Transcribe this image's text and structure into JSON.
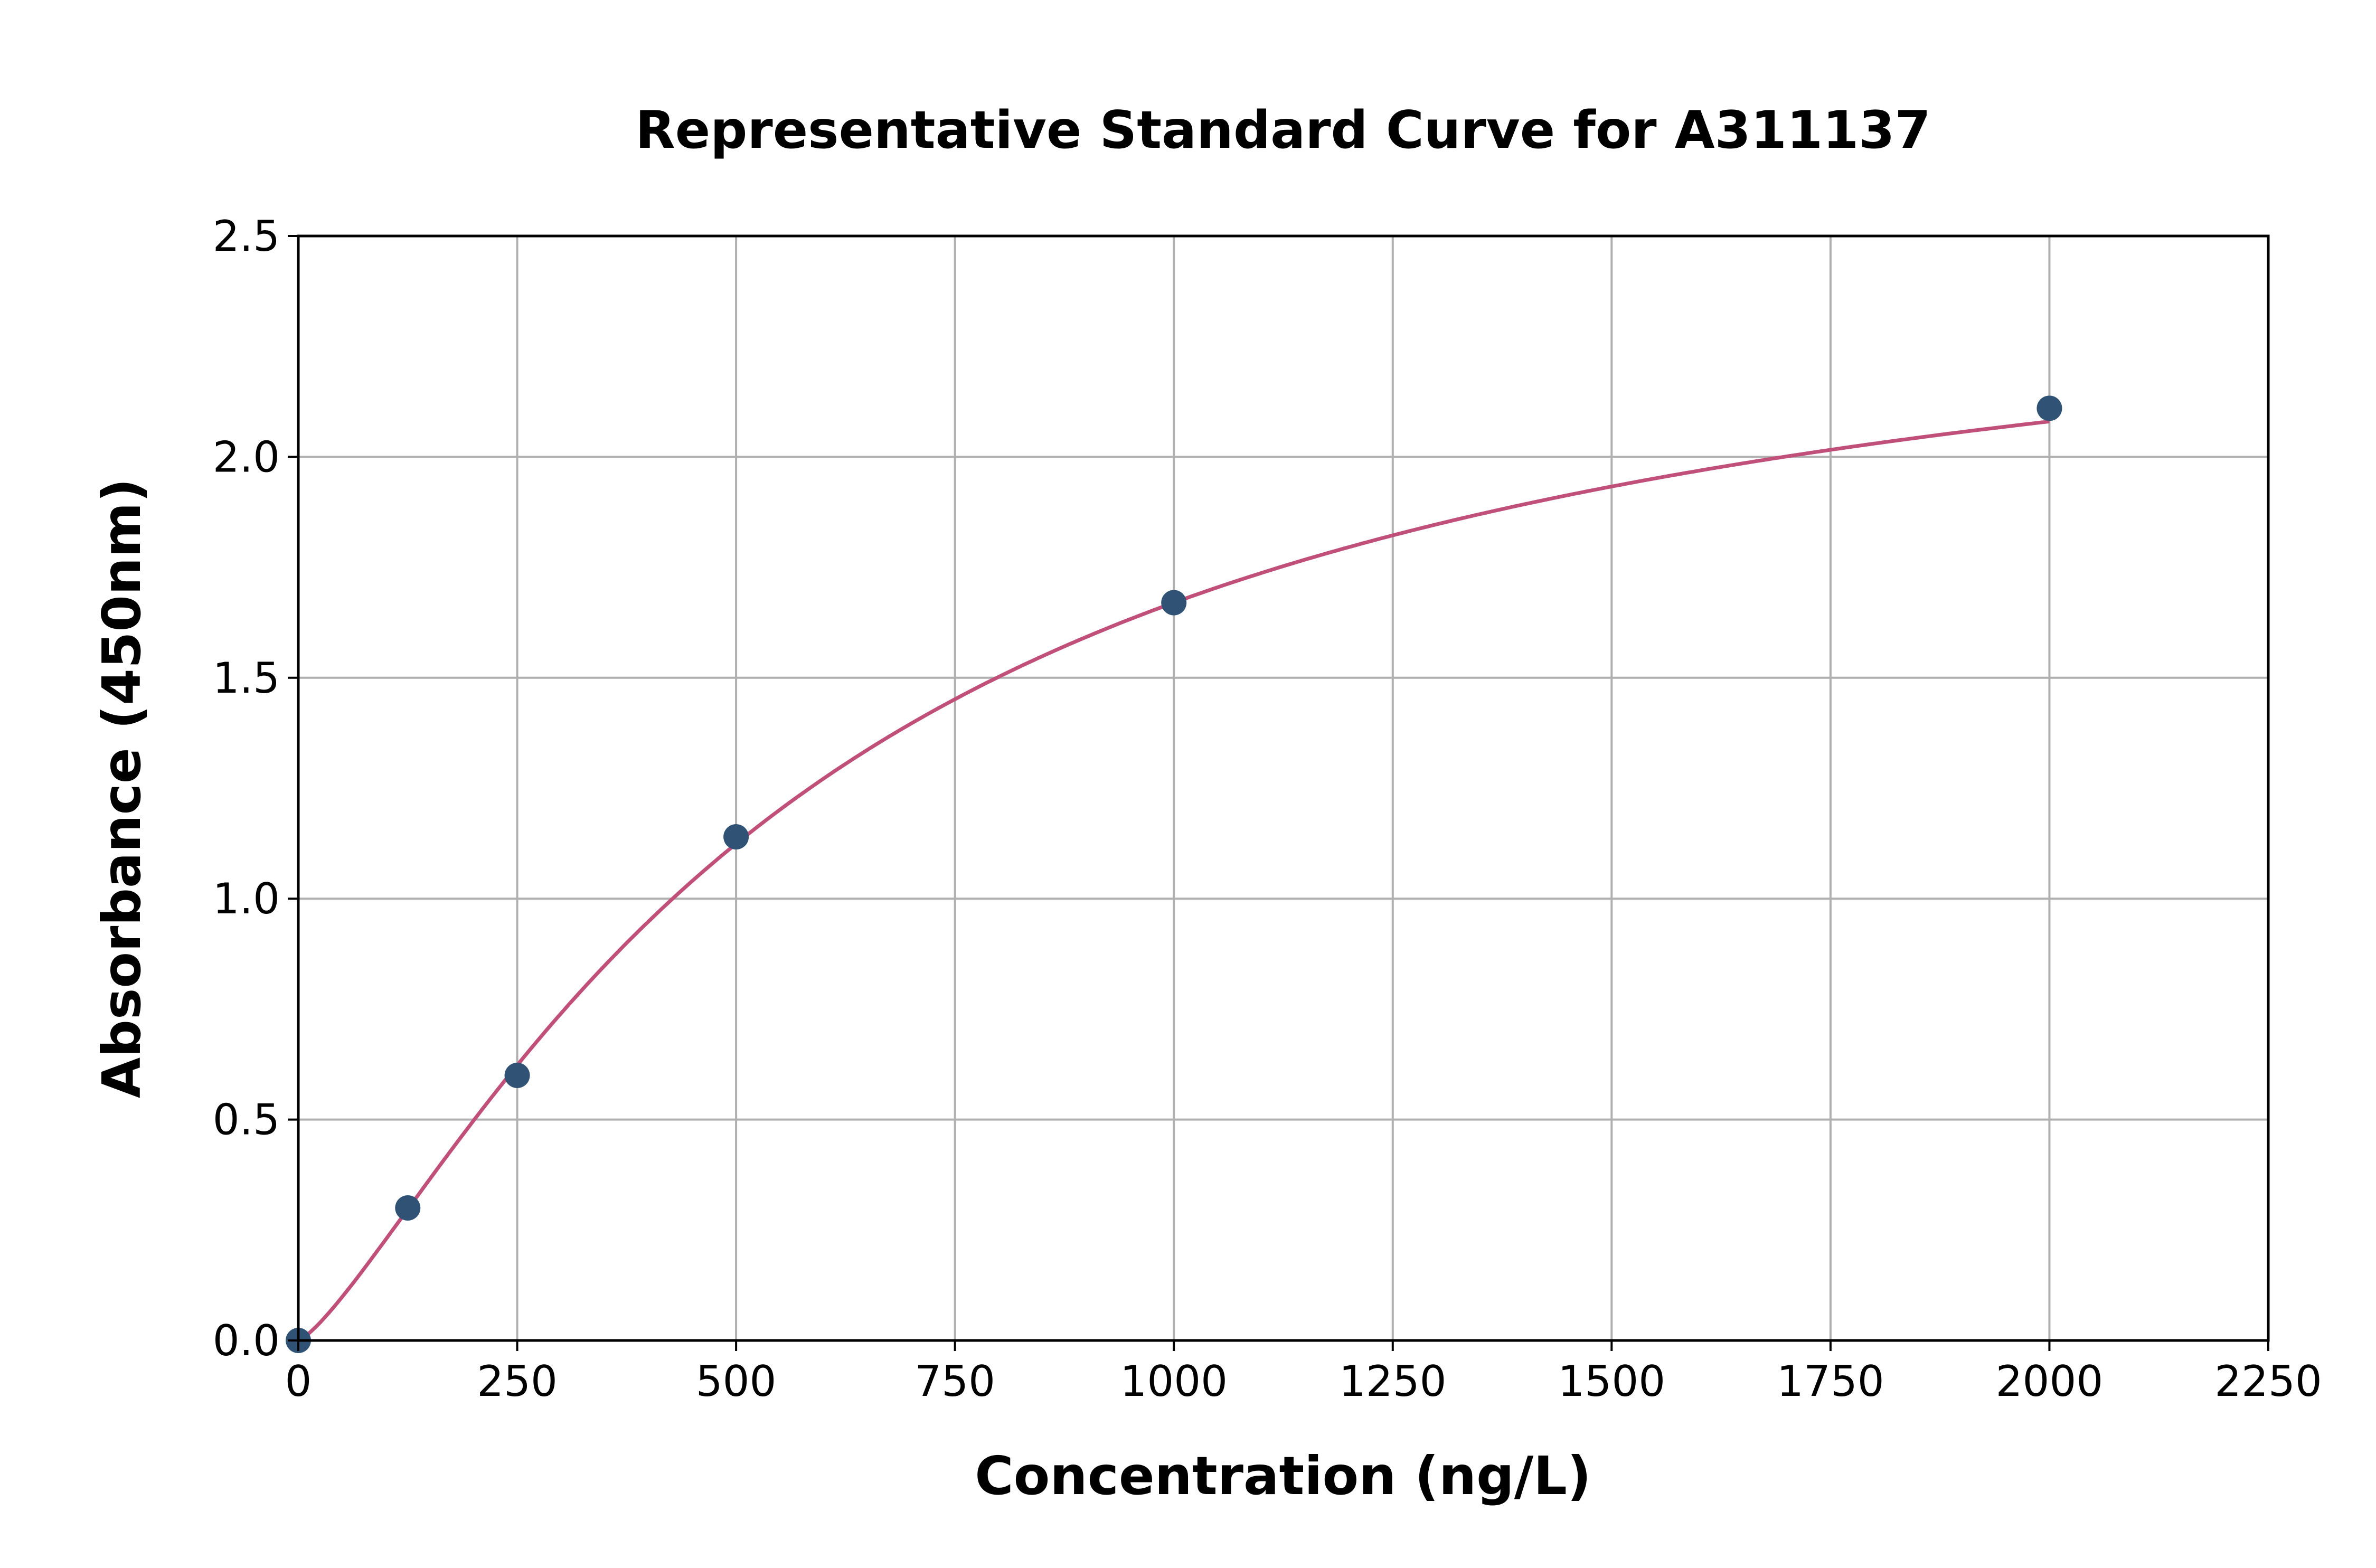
{
  "chart_data": {
    "type": "scatter",
    "title": "Representative Standard Curve for A311137",
    "xlabel": "Concentration (ng/L)",
    "ylabel": "Absorbance (450nm)",
    "xlim": [
      0,
      2250
    ],
    "ylim": [
      0,
      2.5
    ],
    "xticks": [
      "0",
      "250",
      "500",
      "750",
      "1000",
      "1250",
      "1500",
      "1750",
      "2000",
      "2250"
    ],
    "yticks": [
      "0.0",
      "0.5",
      "1.0",
      "1.5",
      "2.0",
      "2.5"
    ],
    "grid": true,
    "points": {
      "x": [
        0,
        125,
        250,
        500,
        1000,
        2000
      ],
      "y": [
        0.0,
        0.3,
        0.6,
        1.14,
        1.67,
        2.11
      ]
    },
    "fit_curve": {
      "type": "4PL fit",
      "color": "#c0507a"
    },
    "marker_color": "#2f5275"
  }
}
